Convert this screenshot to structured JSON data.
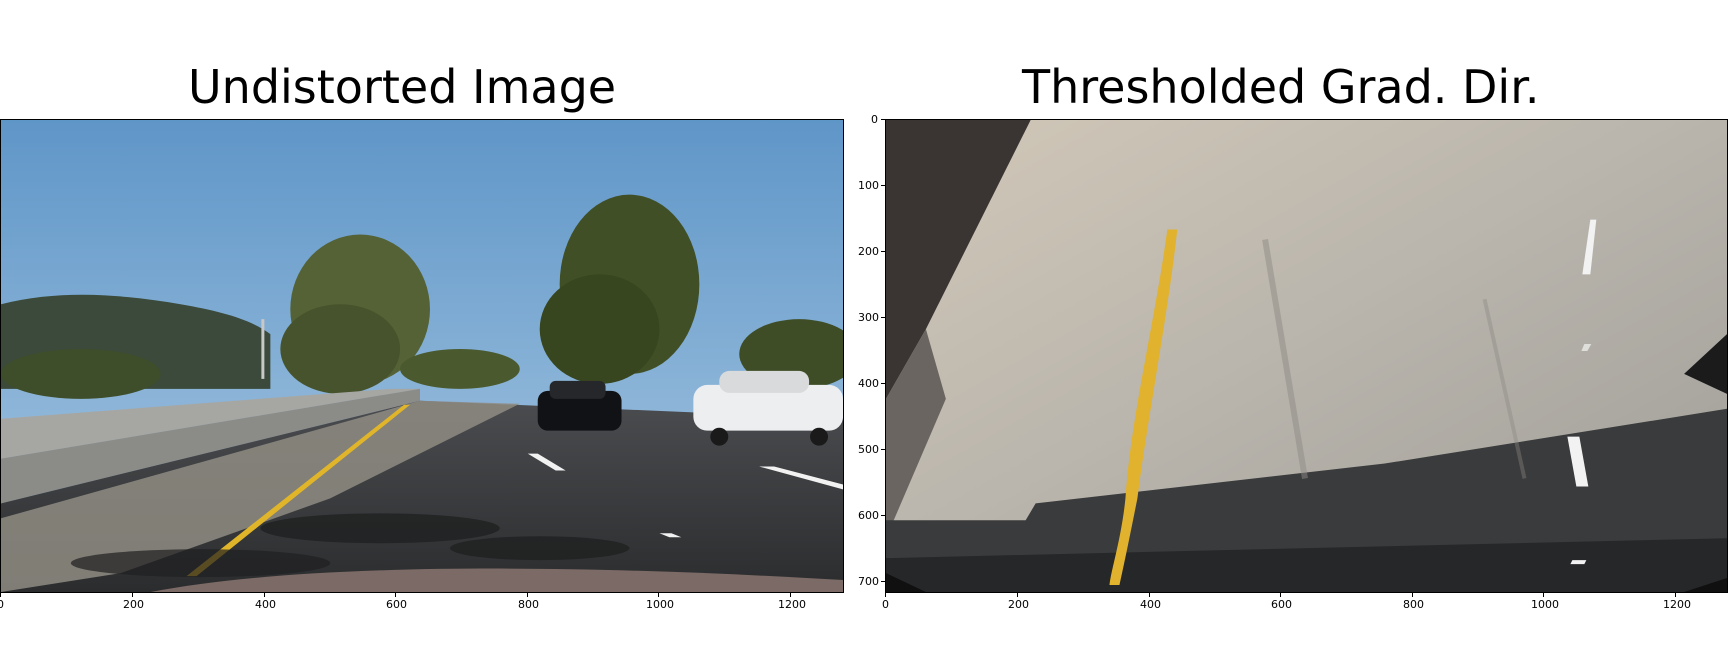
{
  "panels": [
    {
      "title": "Undistorted Image",
      "x_ticks": [
        "0",
        "200",
        "400",
        "600",
        "800",
        "1000",
        "1200"
      ]
    },
    {
      "title": "Thresholded Grad. Dir.",
      "x_ticks": [
        "0",
        "200",
        "400",
        "600",
        "800",
        "1000",
        "1200"
      ],
      "y_ticks": [
        "0",
        "100",
        "200",
        "300",
        "400",
        "500",
        "600",
        "700"
      ]
    }
  ]
}
